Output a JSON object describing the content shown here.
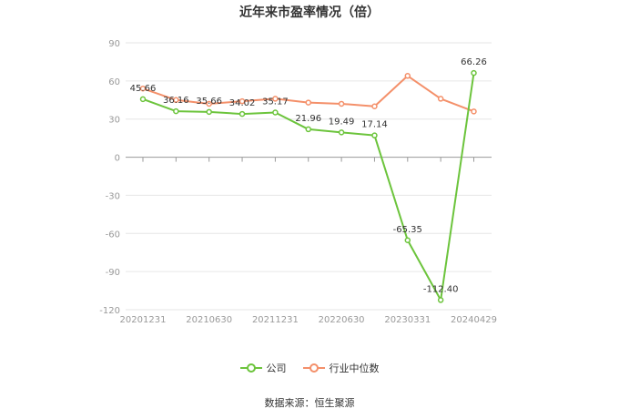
{
  "chart_data": {
    "type": "line",
    "title": "近年来市盈率情况（倍）",
    "source": "数据来源：恒生聚源",
    "x_tick_labels": [
      "20201231",
      "20210630",
      "20211231",
      "20220630",
      "20230331",
      "20240429"
    ],
    "y_ticks": [
      90,
      60,
      30,
      0,
      -30,
      -60,
      -90,
      -120
    ],
    "ylim": [
      -120,
      90
    ],
    "grid": true,
    "legend_position": "bottom",
    "n_points": 11,
    "series": [
      {
        "name": "公司",
        "color": "#6cc43c",
        "values": [
          45.66,
          36.16,
          35.66,
          34.02,
          35.17,
          21.96,
          19.49,
          17.14,
          -65.35,
          -112.4,
          66.26
        ],
        "labels": [
          "45.66",
          "36.16",
          "35.66",
          "34.02",
          "35.17",
          "21.96",
          "19.49",
          "17.14",
          "-65.35",
          "-112.40",
          "66.26"
        ]
      },
      {
        "name": "行业中位数",
        "color": "#f4906a",
        "values": [
          54,
          45,
          42,
          44,
          46,
          43,
          42,
          40,
          64,
          46,
          36
        ]
      }
    ]
  }
}
